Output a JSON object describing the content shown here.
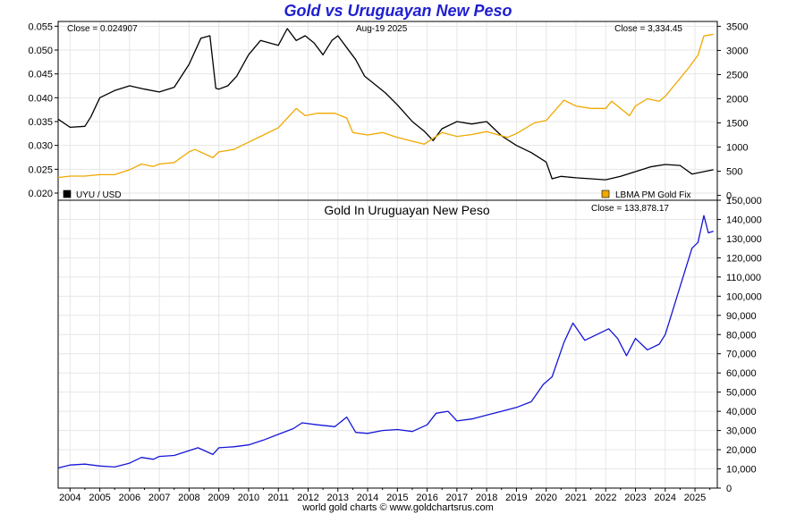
{
  "title": "Gold vs Uruguayan New Peso",
  "footer": "world gold charts © www.goldchartsrus.com",
  "colors": {
    "uyu": "#000000",
    "gold": "#f0a800",
    "ratio": "#1515d8",
    "title": "#1f1fd0",
    "grid": "#e6e6e6"
  },
  "chart_data": [
    {
      "type": "line",
      "title": "",
      "close_left": "Close = 0.024907",
      "date_label": "Aug-19  2025",
      "close_right": "Close = 3,334.45",
      "legend_left": "UYU / USD",
      "legend_right": "LBMA PM Gold Fix",
      "y_left_ticks": [
        "0.055",
        "0.050",
        "0.045",
        "0.040",
        "0.035",
        "0.030",
        "0.025",
        "0.020"
      ],
      "y_right_ticks": [
        "3500",
        "3000",
        "2500",
        "2000",
        "1500",
        "1000",
        "500",
        "0"
      ],
      "ylim_left": [
        0.0185,
        0.056
      ],
      "ylim_right": [
        -100,
        3600
      ],
      "grid": true,
      "series": [
        {
          "name": "UYU / USD",
          "axis": "left",
          "color": "#000000",
          "x": [
            2003.6,
            2004.0,
            2004.5,
            2004.7,
            2005.0,
            2005.5,
            2006.0,
            2006.5,
            2007.0,
            2007.5,
            2008.0,
            2008.4,
            2008.7,
            2008.9,
            2009.0,
            2009.3,
            2009.6,
            2010.0,
            2010.4,
            2010.7,
            2011.0,
            2011.3,
            2011.6,
            2011.9,
            2012.2,
            2012.5,
            2012.8,
            2013.0,
            2013.3,
            2013.6,
            2013.9,
            2014.2,
            2014.6,
            2015.0,
            2015.5,
            2015.9,
            2016.2,
            2016.5,
            2017.0,
            2017.5,
            2018.0,
            2018.5,
            2019.0,
            2019.5,
            2020.0,
            2020.2,
            2020.5,
            2021.0,
            2021.5,
            2022.0,
            2022.5,
            2023.0,
            2023.5,
            2024.0,
            2024.5,
            2024.9,
            2025.3,
            2025.62
          ],
          "y": [
            0.0355,
            0.0338,
            0.034,
            0.036,
            0.04,
            0.0415,
            0.0425,
            0.0418,
            0.0412,
            0.0422,
            0.047,
            0.0525,
            0.053,
            0.042,
            0.0418,
            0.0425,
            0.0445,
            0.049,
            0.052,
            0.0515,
            0.051,
            0.0545,
            0.052,
            0.053,
            0.0515,
            0.049,
            0.052,
            0.053,
            0.0505,
            0.048,
            0.0445,
            0.043,
            0.041,
            0.0385,
            0.035,
            0.033,
            0.031,
            0.0335,
            0.035,
            0.0345,
            0.035,
            0.032,
            0.03,
            0.0285,
            0.0265,
            0.023,
            0.0235,
            0.0232,
            0.023,
            0.0228,
            0.0235,
            0.0245,
            0.0255,
            0.026,
            0.0258,
            0.024,
            0.0245,
            0.0249
          ]
        },
        {
          "name": "LBMA PM Gold Fix",
          "axis": "right",
          "color": "#f0a800",
          "x": [
            2003.6,
            2004.0,
            2004.5,
            2005.0,
            2005.5,
            2006.0,
            2006.4,
            2006.8,
            2007.0,
            2007.5,
            2008.0,
            2008.2,
            2008.8,
            2009.0,
            2009.5,
            2010.0,
            2010.5,
            2011.0,
            2011.6,
            2011.9,
            2012.3,
            2012.9,
            2013.3,
            2013.5,
            2014.0,
            2014.5,
            2015.0,
            2015.9,
            2016.5,
            2017.0,
            2017.5,
            2018.0,
            2018.7,
            2019.0,
            2019.6,
            2020.0,
            2020.6,
            2021.0,
            2021.5,
            2022.0,
            2022.2,
            2022.8,
            2023.0,
            2023.4,
            2023.8,
            2024.0,
            2024.4,
            2024.8,
            2025.1,
            2025.3,
            2025.62
          ],
          "y": [
            370,
            400,
            400,
            430,
            430,
            530,
            650,
            600,
            650,
            680,
            900,
            950,
            780,
            900,
            950,
            1100,
            1250,
            1400,
            1800,
            1650,
            1700,
            1700,
            1600,
            1300,
            1250,
            1300,
            1200,
            1060,
            1300,
            1220,
            1260,
            1320,
            1200,
            1280,
            1500,
            1550,
            1970,
            1850,
            1800,
            1800,
            1950,
            1650,
            1850,
            2000,
            1950,
            2050,
            2350,
            2650,
            2900,
            3300,
            3334
          ]
        }
      ]
    },
    {
      "type": "line",
      "title": "Gold In Uruguayan New Peso",
      "close_right": "Close = 133,878.17",
      "y_right_ticks": [
        "150,000",
        "140,000",
        "130,000",
        "120,000",
        "110,000",
        "100,000",
        "90,000",
        "80,000",
        "70,000",
        "60,000",
        "50,000",
        "40,000",
        "30,000",
        "20,000",
        "10,000",
        "0"
      ],
      "ylim_right": [
        0,
        150000
      ],
      "x_ticks": [
        "2004",
        "2005",
        "2006",
        "2007",
        "2008",
        "2009",
        "2010",
        "2011",
        "2012",
        "2013",
        "2014",
        "2015",
        "2016",
        "2017",
        "2018",
        "2019",
        "2020",
        "2021",
        "2022",
        "2023",
        "2024",
        "2025"
      ],
      "xlim": [
        2003.6,
        2025.75
      ],
      "grid": true,
      "series": [
        {
          "name": "Gold In Uruguayan New Peso",
          "axis": "right",
          "color": "#1515d8",
          "x": [
            2003.6,
            2004.0,
            2004.5,
            2005.0,
            2005.5,
            2006.0,
            2006.4,
            2006.8,
            2007.0,
            2007.5,
            2008.0,
            2008.3,
            2008.8,
            2009.0,
            2009.5,
            2010.0,
            2010.5,
            2011.0,
            2011.5,
            2011.8,
            2012.3,
            2012.9,
            2013.3,
            2013.6,
            2014.0,
            2014.5,
            2015.0,
            2015.5,
            2016.0,
            2016.3,
            2016.7,
            2017.0,
            2017.5,
            2018.0,
            2018.5,
            2019.0,
            2019.5,
            2019.9,
            2020.2,
            2020.6,
            2020.9,
            2021.3,
            2021.7,
            2022.1,
            2022.4,
            2022.7,
            2023.0,
            2023.4,
            2023.8,
            2024.0,
            2024.3,
            2024.6,
            2024.9,
            2025.1,
            2025.3,
            2025.45,
            2025.62
          ],
          "y": [
            10500,
            12000,
            12500,
            11500,
            11000,
            13000,
            16000,
            15000,
            16500,
            17000,
            19500,
            21000,
            17500,
            21000,
            21500,
            22500,
            25000,
            28000,
            31000,
            34000,
            33000,
            32000,
            37000,
            29000,
            28500,
            30000,
            30500,
            29500,
            33000,
            39000,
            40000,
            35000,
            36000,
            38000,
            40000,
            42000,
            45000,
            54000,
            58000,
            76000,
            86000,
            77000,
            80000,
            83000,
            78000,
            69000,
            78000,
            72000,
            75000,
            80000,
            95000,
            110000,
            125000,
            128000,
            142000,
            133000,
            133878
          ]
        }
      ]
    }
  ]
}
